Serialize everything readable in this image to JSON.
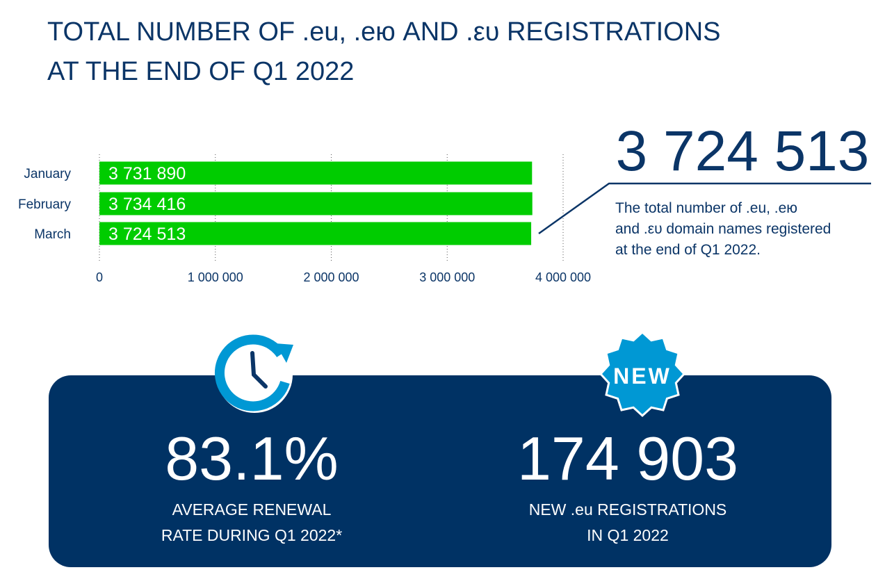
{
  "title": {
    "line1": "TOTAL NUMBER OF .eu, .ею AND .ευ REGISTRATIONS",
    "line2": "AT THE END OF Q1 2022"
  },
  "chart_data": {
    "type": "bar",
    "orientation": "horizontal",
    "categories": [
      "January",
      "February",
      "March"
    ],
    "values": [
      3731890,
      3734416,
      3724513
    ],
    "value_labels": [
      "3 731 890",
      "3 734 416",
      "3 724 513"
    ],
    "xlim": [
      0,
      4000000
    ],
    "x_ticks": [
      0,
      1000000,
      2000000,
      3000000,
      4000000
    ],
    "x_tick_labels": [
      "0",
      "1 000 000",
      "2 000 000",
      "3 000 000",
      "4 000 000"
    ],
    "grid": "vertical-dotted",
    "bar_color": "#00cc00"
  },
  "callout": {
    "number": "3 724 513",
    "line1": "The total number of .eu, .ею",
    "line2": "and .ευ domain names registered",
    "line3": "at the end of Q1 2022."
  },
  "stats": {
    "renewal": {
      "value": "83.1%",
      "label_line1": "AVERAGE RENEWAL",
      "label_line2": "RATE DURING Q1 2022*",
      "icon": "clock-renewal-icon"
    },
    "new_registrations": {
      "value": "174 903",
      "label_line1": "NEW .eu REGISTRATIONS",
      "label_line2": "IN Q1 2022",
      "badge": "NEW",
      "icon": "new-badge-icon"
    }
  },
  "colors": {
    "title": "#0b3567",
    "panel": "#003264",
    "accent_blue": "#0098d4",
    "bar": "#00cc00"
  }
}
